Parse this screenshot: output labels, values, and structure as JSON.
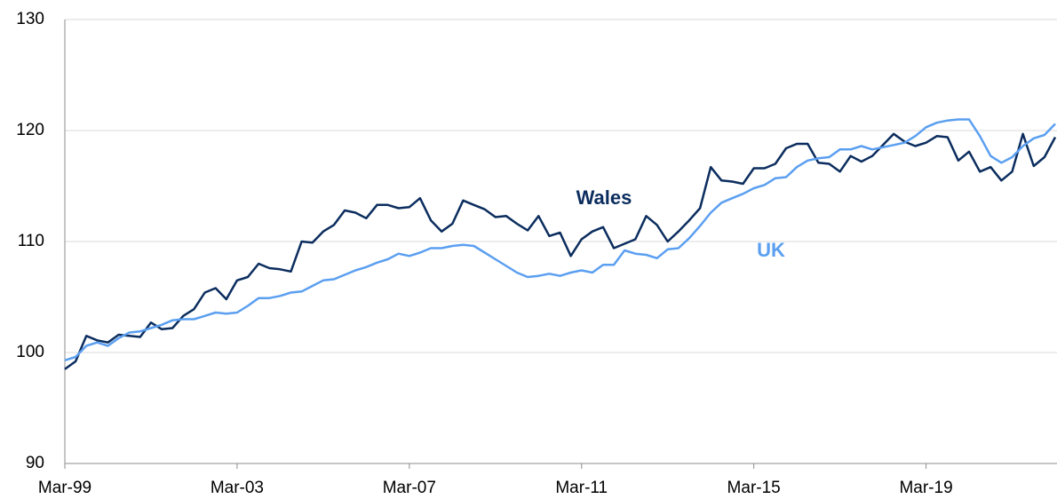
{
  "chart_data": {
    "type": "line",
    "categories": [
      "Mar-99",
      null,
      null,
      null,
      null,
      null,
      null,
      null,
      null,
      null,
      null,
      null,
      null,
      null,
      null,
      null,
      "Mar-03",
      null,
      null,
      null,
      null,
      null,
      null,
      null,
      null,
      null,
      null,
      null,
      null,
      null,
      null,
      null,
      "Mar-07",
      null,
      null,
      null,
      null,
      null,
      null,
      null,
      null,
      null,
      null,
      null,
      null,
      null,
      null,
      null,
      "Mar-11",
      null,
      null,
      null,
      null,
      null,
      null,
      null,
      null,
      null,
      null,
      null,
      null,
      null,
      null,
      null,
      "Mar-15",
      null,
      null,
      null,
      null,
      null,
      null,
      null,
      null,
      null,
      null,
      null,
      null,
      null,
      null,
      null,
      "Mar-19",
      null,
      null,
      null,
      null,
      null,
      null,
      null,
      null,
      null,
      null,
      null,
      null
    ],
    "series": [
      {
        "name": "Wales",
        "color": "#0b2d5e",
        "values": [
          98.5,
          99.2,
          101.5,
          101.1,
          100.9,
          101.6,
          101.5,
          101.4,
          102.7,
          102.1,
          102.2,
          103.3,
          103.9,
          105.4,
          105.8,
          104.8,
          106.5,
          106.8,
          108.0,
          107.6,
          107.5,
          107.3,
          110.0,
          109.9,
          110.9,
          111.5,
          112.8,
          112.6,
          112.1,
          113.3,
          113.3,
          113.0,
          113.1,
          113.9,
          111.9,
          110.9,
          111.6,
          113.7,
          113.3,
          112.9,
          112.2,
          112.3,
          111.6,
          111.0,
          112.3,
          110.5,
          110.8,
          108.7,
          110.2,
          110.9,
          111.3,
          109.4,
          109.8,
          110.2,
          112.3,
          111.5,
          110.0,
          110.9,
          111.9,
          113.0,
          116.7,
          115.5,
          115.4,
          115.2,
          116.6,
          116.6,
          117.0,
          118.4,
          118.8,
          118.8,
          117.1,
          117.0,
          116.3,
          117.7,
          117.2,
          117.7,
          118.7,
          119.7,
          119.0,
          118.6,
          118.9,
          119.5,
          119.4,
          117.3,
          118.1,
          116.3,
          116.7,
          115.5,
          116.3,
          119.7,
          116.8,
          117.6,
          119.4
        ]
      },
      {
        "name": "UK",
        "color": "#5b9ff0",
        "values": [
          99.3,
          99.6,
          100.6,
          100.9,
          100.6,
          101.3,
          101.8,
          101.9,
          102.2,
          102.5,
          102.9,
          103.0,
          103.0,
          103.3,
          103.6,
          103.5,
          103.6,
          104.2,
          104.9,
          104.9,
          105.1,
          105.4,
          105.5,
          106.0,
          106.5,
          106.6,
          107.0,
          107.4,
          107.7,
          108.1,
          108.4,
          108.9,
          108.7,
          109.0,
          109.4,
          109.4,
          109.6,
          109.7,
          109.6,
          109.0,
          108.4,
          107.8,
          107.2,
          106.8,
          106.9,
          107.1,
          106.9,
          107.2,
          107.4,
          107.2,
          107.9,
          107.9,
          109.2,
          108.9,
          108.8,
          108.5,
          109.3,
          109.4,
          110.3,
          111.4,
          112.6,
          113.5,
          113.9,
          114.3,
          114.8,
          115.1,
          115.7,
          115.8,
          116.7,
          117.3,
          117.5,
          117.6,
          118.3,
          118.3,
          118.6,
          118.3,
          118.5,
          118.7,
          118.9,
          119.5,
          120.3,
          120.7,
          120.9,
          121.0,
          121.0,
          119.5,
          117.7,
          117.1,
          117.6,
          118.6,
          119.3,
          119.6,
          120.6
        ]
      }
    ],
    "ylim": [
      90,
      130
    ],
    "yticks": [
      90,
      100,
      110,
      120,
      130
    ],
    "grid": true
  }
}
